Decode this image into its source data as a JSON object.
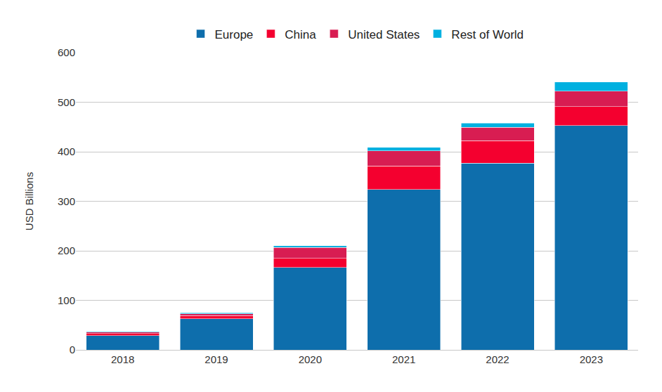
{
  "chart_data": {
    "type": "bar",
    "stacked": true,
    "legend": "top",
    "grid": true,
    "ylabel": "USD Billions",
    "categories": [
      "2018",
      "2019",
      "2020",
      "2021",
      "2022",
      "2023"
    ],
    "series": [
      {
        "name": "Europe",
        "color": "#0e6eac",
        "values": [
          29,
          63,
          166,
          324,
          377,
          453
        ]
      },
      {
        "name": "China",
        "color": "#f4002f",
        "values": [
          4,
          6,
          19,
          47,
          45,
          38
        ]
      },
      {
        "name": "United States",
        "color": "#d81d52",
        "values": [
          3,
          4,
          22,
          31,
          27,
          31
        ]
      },
      {
        "name": "Rest of World",
        "color": "#00b0e0",
        "values": [
          1,
          1.5,
          3,
          7,
          9,
          19
        ]
      }
    ],
    "ylim": [
      0,
      600
    ],
    "yticks": [
      0,
      100,
      200,
      300,
      400,
      500,
      600
    ]
  }
}
